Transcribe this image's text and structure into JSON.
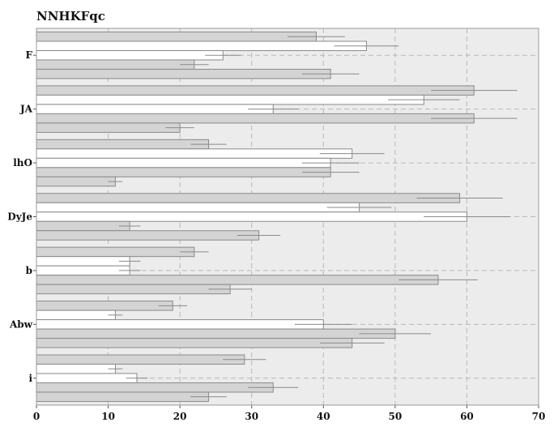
{
  "chart_data": {
    "type": "bar",
    "orientation": "horizontal",
    "title": "NNHKFqc",
    "xlabel": "",
    "ylabel": "",
    "xlim": [
      0,
      70
    ],
    "x_ticks": [
      0,
      10,
      20,
      30,
      40,
      50,
      60,
      70
    ],
    "grid": true,
    "legend": "none",
    "categories": [
      "F",
      "JA",
      "lhO",
      "DyJe",
      "b",
      "Abw",
      "i"
    ],
    "series": [
      {
        "color": "#d4d4d4",
        "values": [
          39,
          61,
          24,
          59,
          22,
          19,
          29
        ],
        "errors": [
          4,
          6,
          2.5,
          6,
          2,
          2,
          3
        ]
      },
      {
        "color": "#ffffff",
        "values": [
          46,
          54,
          44,
          45,
          13,
          11,
          11
        ],
        "errors": [
          4.5,
          5,
          4.5,
          4.5,
          1.5,
          1,
          1
        ]
      },
      {
        "color": "#ffffff",
        "values": [
          26,
          33,
          41,
          60,
          13,
          40,
          14
        ],
        "errors": [
          2.5,
          3.5,
          4,
          6,
          1.5,
          4,
          1.5
        ]
      },
      {
        "color": "#d4d4d4",
        "values": [
          22,
          61,
          41,
          13,
          56,
          50,
          33
        ],
        "errors": [
          2,
          6,
          4,
          1.5,
          5.5,
          5,
          3.5
        ]
      },
      {
        "color": "#d4d4d4",
        "values": [
          41,
          20,
          11,
          31,
          27,
          44,
          24
        ],
        "errors": [
          4,
          2,
          1,
          3,
          3,
          4.5,
          2.5
        ]
      }
    ]
  }
}
